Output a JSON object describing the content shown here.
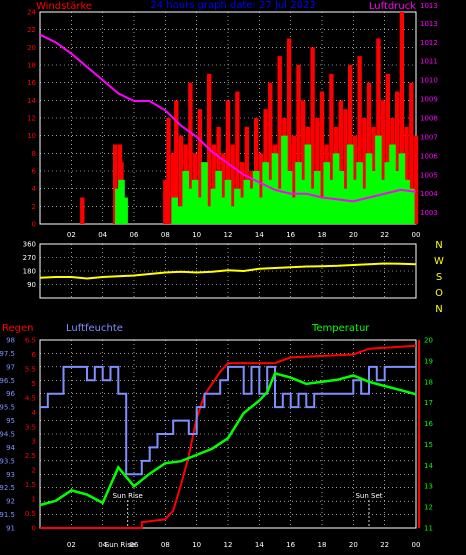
{
  "title": "24 hours graph date: 27 Jul 2023",
  "colors": {
    "background": "#000000",
    "frame": "#ffffff",
    "grid": "#ffffff",
    "wind_speed": "#ff0000",
    "wind_gust": "#00ff00",
    "pressure": "#ff00ff",
    "direction": "#ffff00",
    "rain": "#ff0000",
    "humidity": "#7f8fff",
    "temperature": "#00ff00",
    "sun": "#ffffff",
    "title": "#0000ff",
    "dir_labels": "#ffff00"
  },
  "chart_data": [
    {
      "type": "bar",
      "title": "24 hours graph date: 27 Jul 2023",
      "ylabel_left": "Windstärke",
      "ylabel_right": "Luftdruck",
      "x_ticks": [
        "02",
        "04",
        "06",
        "08",
        "10",
        "12",
        "14",
        "16",
        "18",
        "20",
        "22",
        "00"
      ],
      "xlim": [
        0,
        24
      ],
      "y_left_ticks": [
        "0",
        "2",
        "4",
        "6",
        "8",
        "10",
        "12",
        "14",
        "16",
        "18",
        "20",
        "22",
        "24"
      ],
      "ylim_left": [
        0,
        24
      ],
      "y_right_ticks": [
        "1003",
        "1004",
        "1005",
        "1006",
        "1007",
        "1008",
        "1009",
        "1010",
        "1011",
        "1012",
        "1013",
        "1013",
        "1013"
      ],
      "ylim_right": [
        1002.4,
        1013.6
      ],
      "grid": true,
      "series": [
        {
          "key": "wind_speed",
          "x": [
            2.7,
            4.8,
            5.1,
            5.2,
            8.0,
            8.2,
            8.5,
            8.7,
            9.0,
            9.3,
            9.6,
            9.9,
            10.2,
            10.5,
            10.8,
            11.1,
            11.4,
            11.7,
            12.0,
            12.3,
            12.6,
            12.9,
            13.2,
            13.5,
            13.8,
            14.1,
            14.4,
            14.7,
            15.0,
            15.3,
            15.6,
            15.9,
            16.2,
            16.5,
            16.8,
            17.1,
            17.4,
            17.7,
            18.0,
            18.3,
            18.6,
            18.9,
            19.2,
            19.5,
            19.8,
            20.1,
            20.4,
            20.7,
            21.0,
            21.3,
            21.6,
            21.9,
            22.2,
            22.5,
            22.8,
            23.1,
            23.4,
            23.7,
            24.0
          ],
          "values": [
            3,
            9,
            9,
            7,
            5,
            12,
            8,
            14,
            10,
            9,
            16,
            8,
            13,
            7,
            17,
            9,
            11,
            8,
            14,
            9,
            15,
            7,
            11,
            6,
            12,
            8,
            13,
            16,
            9,
            19,
            12,
            21,
            10,
            18,
            14,
            11,
            20,
            12,
            15,
            9,
            17,
            11,
            14,
            13,
            18,
            10,
            19,
            12,
            16,
            11,
            21,
            14,
            17,
            12,
            15,
            24,
            11,
            16,
            10
          ]
        },
        {
          "key": "wind_gust",
          "x": [
            5.0,
            5.2,
            5.4,
            8.6,
            9.0,
            9.3,
            9.6,
            9.9,
            10.2,
            10.5,
            10.8,
            11.1,
            11.4,
            11.7,
            12.0,
            12.3,
            12.6,
            12.9,
            13.2,
            13.5,
            13.8,
            14.1,
            14.4,
            14.7,
            15.0,
            15.3,
            15.6,
            15.9,
            16.2,
            16.5,
            16.8,
            17.1,
            17.4,
            17.7,
            18.0,
            18.3,
            18.6,
            18.9,
            19.2,
            19.5,
            19.8,
            20.1,
            20.4,
            20.7,
            21.0,
            21.3,
            21.6,
            21.9,
            22.2,
            22.5,
            22.8,
            23.1,
            23.4,
            23.7
          ],
          "values": [
            4,
            5,
            3,
            3,
            2,
            6,
            4,
            5,
            3,
            7,
            2,
            4,
            6,
            3,
            5,
            2,
            4,
            3,
            5,
            4,
            6,
            3,
            7,
            5,
            8,
            4,
            10,
            6,
            3,
            7,
            5,
            9,
            4,
            6,
            3,
            7,
            5,
            8,
            6,
            4,
            9,
            5,
            7,
            4,
            8,
            6,
            10,
            5,
            7,
            9,
            6,
            8,
            5,
            4
          ]
        },
        {
          "key": "pressure",
          "axis": "right",
          "x": [
            0,
            1,
            2,
            3,
            4,
            5,
            6,
            7,
            8,
            9,
            10,
            11,
            12,
            13,
            14,
            15,
            16,
            17,
            18,
            19,
            20,
            21,
            22,
            23,
            24
          ],
          "values": [
            1012.4,
            1012.0,
            1011.4,
            1010.7,
            1010.0,
            1009.3,
            1008.9,
            1008.9,
            1008.4,
            1007.6,
            1007.0,
            1006.2,
            1005.6,
            1005.0,
            1004.6,
            1004.2,
            1004.0,
            1004.0,
            1003.8,
            1003.7,
            1003.6,
            1003.8,
            1004.0,
            1004.2,
            1004.1
          ]
        }
      ]
    },
    {
      "type": "line",
      "dir_labels": [
        "N",
        "W",
        "S",
        "O",
        "N"
      ],
      "y_ticks": [
        "90",
        "180",
        "270",
        "360"
      ],
      "ylim": [
        0,
        360
      ],
      "x_ticks": [],
      "grid": true,
      "series": [
        {
          "key": "direction",
          "x": [
            0,
            1,
            2,
            3,
            4,
            5,
            6,
            7,
            8,
            9,
            10,
            11,
            12,
            13,
            14,
            15,
            16,
            17,
            18,
            19,
            20,
            21,
            22,
            23,
            24
          ],
          "values": [
            135,
            140,
            140,
            130,
            140,
            145,
            150,
            160,
            170,
            175,
            170,
            175,
            185,
            180,
            195,
            200,
            205,
            210,
            212,
            215,
            220,
            225,
            230,
            228,
            225
          ]
        }
      ]
    },
    {
      "type": "line",
      "label_rain": "Regen",
      "label_humidity": "Luftfeuchte",
      "label_temperature": "Temperatur",
      "x_ticks": [
        "02",
        "04",
        "06",
        "08",
        "10",
        "12",
        "14",
        "16",
        "18",
        "20",
        "22",
        "00"
      ],
      "xlim": [
        0,
        24
      ],
      "y_humidity_ticks": [
        "98",
        "97.5",
        "97",
        "96.5",
        "96",
        "95.5",
        "95",
        "94.5",
        "94",
        "93.5",
        "93",
        "92.5",
        "92",
        "91.5",
        "91"
      ],
      "ylim_humidity": [
        91,
        98
      ],
      "y_rain_ticks": [
        "0",
        "0.5",
        "1",
        "1.5",
        "2",
        "2.5",
        "3",
        "3.5",
        "4",
        "4.5",
        "5",
        "5.5",
        "6",
        "6.5"
      ],
      "ylim_rain": [
        0,
        6.5
      ],
      "y_temp_ticks": [
        "11",
        "12",
        "13",
        "14",
        "15",
        "16",
        "17",
        "18",
        "19",
        "20"
      ],
      "ylim_temp": [
        11,
        20
      ],
      "grid": true,
      "annotations": [
        {
          "label": "Sun Rise",
          "x": 5.6
        },
        {
          "label": "Sun Set",
          "x": 21.0
        }
      ],
      "bottom_label": "Sun Rise",
      "series": [
        {
          "key": "rain",
          "axis": "rain",
          "x": [
            0,
            5.5,
            6.5,
            6.5,
            8.0,
            8.5,
            9.0,
            9.5,
            10.0,
            10.5,
            11.0,
            11.5,
            12.0,
            15.0,
            16.0,
            20.0,
            21.0,
            24.0
          ],
          "values": [
            0,
            0,
            0,
            0.2,
            0.3,
            0.6,
            1.5,
            2.5,
            3.8,
            4.6,
            5.0,
            5.4,
            5.7,
            5.7,
            5.9,
            6.0,
            6.2,
            6.3
          ]
        },
        {
          "key": "humidity",
          "axis": "humidity",
          "x": [
            0,
            0.5,
            1.0,
            1.5,
            2.5,
            3.0,
            3.5,
            4.0,
            4.5,
            5.0,
            5.5,
            6.0,
            6.5,
            7.0,
            7.5,
            8.0,
            8.5,
            9.0,
            9.5,
            10.0,
            10.5,
            11.0,
            11.5,
            12.0,
            12.5,
            13.0,
            13.5,
            14.0,
            14.5,
            15.0,
            15.5,
            16.0,
            16.5,
            17.0,
            17.5,
            18.0,
            18.5,
            19.0,
            19.5,
            20.0,
            20.5,
            21.0,
            21.5,
            22.0,
            23.0,
            24.0
          ],
          "values": [
            95.5,
            96,
            96,
            97,
            97,
            96.5,
            97,
            96.5,
            97,
            96,
            93,
            93,
            93.5,
            94,
            94.5,
            94.5,
            95,
            95,
            94.5,
            95.5,
            96,
            96,
            96.5,
            97,
            97,
            96,
            97,
            96,
            97,
            95.5,
            96,
            95.5,
            96,
            95.5,
            96,
            96,
            96,
            96,
            96,
            96.5,
            96,
            97,
            96.5,
            97,
            97,
            97
          ]
        },
        {
          "key": "temperature",
          "axis": "temp",
          "x": [
            0,
            1,
            2,
            3,
            4,
            5,
            6,
            7,
            8,
            9,
            10,
            11,
            12,
            13,
            14,
            14.5,
            15,
            16,
            17,
            18,
            19,
            20,
            21,
            22,
            23,
            24
          ],
          "values": [
            12.1,
            12.3,
            12.8,
            12.6,
            12.2,
            13.9,
            13.0,
            13.6,
            14.1,
            14.2,
            14.5,
            14.8,
            15.3,
            16.5,
            17.1,
            17.5,
            18.4,
            18.2,
            17.9,
            18.0,
            18.1,
            18.3,
            18.0,
            17.8,
            17.6,
            17.4
          ]
        }
      ]
    }
  ]
}
